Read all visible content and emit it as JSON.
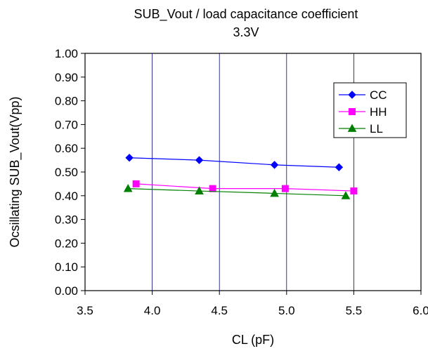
{
  "chart_data": {
    "type": "line",
    "title": "SUB_Vout  / load capacitance coefficient",
    "subtitle": "3.3V",
    "xlabel": "CL (pF)",
    "ylabel": "Ocsillating SUB_Vout(Vpp)",
    "xlim": [
      3.5,
      6.0
    ],
    "ylim": [
      0.0,
      1.0
    ],
    "x_ticks": [
      "3.5",
      "4.0",
      "4.5",
      "5.0",
      "5.5",
      "6.0"
    ],
    "y_ticks": [
      "0.00",
      "0.10",
      "0.20",
      "0.30",
      "0.40",
      "0.50",
      "0.60",
      "0.70",
      "0.80",
      "0.90",
      "1.00"
    ],
    "grid": "vertical",
    "legend_position": "top-right",
    "series": [
      {
        "name": "CC",
        "color": "#0000FF",
        "marker": "diamond",
        "points": [
          [
            3.83,
            0.56
          ],
          [
            4.35,
            0.55
          ],
          [
            4.91,
            0.53
          ],
          [
            5.39,
            0.52
          ]
        ]
      },
      {
        "name": "HH",
        "color": "#FF00FF",
        "marker": "square",
        "points": [
          [
            3.88,
            0.45
          ],
          [
            4.45,
            0.43
          ],
          [
            4.99,
            0.43
          ],
          [
            5.5,
            0.42
          ]
        ]
      },
      {
        "name": "LL",
        "color": "#008000",
        "marker": "triangle",
        "points": [
          [
            3.82,
            0.43
          ],
          [
            4.35,
            0.42
          ],
          [
            4.91,
            0.41
          ],
          [
            5.44,
            0.4
          ]
        ]
      }
    ]
  }
}
